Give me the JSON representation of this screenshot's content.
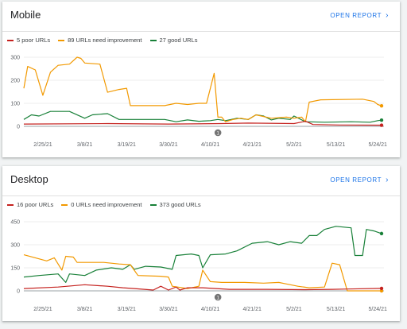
{
  "charts": [
    {
      "id": "mobile",
      "title": "Mobile",
      "open_report": "OPEN REPORT",
      "legend": [
        {
          "label": "5 poor URLs",
          "color": "#c5221f"
        },
        {
          "label": "89 URLs need improvement",
          "color": "#f29900"
        },
        {
          "label": "27 good URLs",
          "color": "#188038"
        }
      ],
      "annotation": "1"
    },
    {
      "id": "desktop",
      "title": "Desktop",
      "open_report": "OPEN REPORT",
      "legend": [
        {
          "label": "16 poor URLs",
          "color": "#c5221f"
        },
        {
          "label": "0 URLs need improvement",
          "color": "#f29900"
        },
        {
          "label": "373 good URLs",
          "color": "#188038"
        }
      ],
      "annotation": "1"
    }
  ],
  "chart_data": [
    {
      "type": "line",
      "title": "Mobile",
      "x_range": [
        "2021-02-20",
        "2021-05-25"
      ],
      "x_ticks": [
        "2/25/21",
        "3/8/21",
        "3/19/21",
        "3/30/21",
        "4/10/21",
        "4/21/21",
        "5/2/21",
        "5/13/21",
        "5/24/21"
      ],
      "ylim": [
        0,
        300
      ],
      "y_ticks": [
        "0",
        "100",
        "200",
        "300"
      ],
      "annotation_date": "2021-04-12",
      "series": [
        {
          "name": "5 poor URLs",
          "color": "#c5221f",
          "points": [
            [
              "2021-02-20",
              10
            ],
            [
              "2021-03-14",
              12
            ],
            [
              "2021-03-30",
              10
            ],
            [
              "2021-04-13",
              12
            ],
            [
              "2021-04-20",
              14
            ],
            [
              "2021-05-02",
              12
            ],
            [
              "2021-05-05",
              22
            ],
            [
              "2021-05-07",
              8
            ],
            [
              "2021-05-14",
              6
            ],
            [
              "2021-05-25",
              5
            ]
          ]
        },
        {
          "name": "89 URLs need improvement",
          "color": "#f29900",
          "points": [
            [
              "2021-02-20",
              165
            ],
            [
              "2021-02-21",
              260
            ],
            [
              "2021-02-23",
              245
            ],
            [
              "2021-02-25",
              135
            ],
            [
              "2021-02-27",
              235
            ],
            [
              "2021-03-01",
              265
            ],
            [
              "2021-03-04",
              270
            ],
            [
              "2021-03-06",
              300
            ],
            [
              "2021-03-07",
              295
            ],
            [
              "2021-03-08",
              275
            ],
            [
              "2021-03-12",
              270
            ],
            [
              "2021-03-14",
              148
            ],
            [
              "2021-03-17",
              160
            ],
            [
              "2021-03-19",
              165
            ],
            [
              "2021-03-20",
              90
            ],
            [
              "2021-03-29",
              90
            ],
            [
              "2021-04-01",
              100
            ],
            [
              "2021-04-04",
              95
            ],
            [
              "2021-04-07",
              100
            ],
            [
              "2021-04-09",
              100
            ],
            [
              "2021-04-11",
              230
            ],
            [
              "2021-04-12",
              40
            ],
            [
              "2021-04-13",
              40
            ],
            [
              "2021-04-14",
              20
            ],
            [
              "2021-04-16",
              30
            ],
            [
              "2021-04-18",
              35
            ],
            [
              "2021-04-20",
              30
            ],
            [
              "2021-04-22",
              50
            ],
            [
              "2021-04-26",
              35
            ],
            [
              "2021-04-30",
              40
            ],
            [
              "2021-05-02",
              35
            ],
            [
              "2021-05-04",
              40
            ],
            [
              "2021-05-05",
              20
            ],
            [
              "2021-05-06",
              105
            ],
            [
              "2021-05-09",
              115
            ],
            [
              "2021-05-20",
              118
            ],
            [
              "2021-05-23",
              108
            ],
            [
              "2021-05-24",
              95
            ],
            [
              "2021-05-25",
              89
            ]
          ]
        },
        {
          "name": "27 good URLs",
          "color": "#188038",
          "points": [
            [
              "2021-02-20",
              30
            ],
            [
              "2021-02-22",
              50
            ],
            [
              "2021-02-24",
              45
            ],
            [
              "2021-02-27",
              65
            ],
            [
              "2021-03-04",
              65
            ],
            [
              "2021-03-08",
              35
            ],
            [
              "2021-03-10",
              50
            ],
            [
              "2021-03-14",
              55
            ],
            [
              "2021-03-17",
              30
            ],
            [
              "2021-03-20",
              30
            ],
            [
              "2021-03-29",
              30
            ],
            [
              "2021-04-01",
              20
            ],
            [
              "2021-04-04",
              28
            ],
            [
              "2021-04-07",
              22
            ],
            [
              "2021-04-10",
              25
            ],
            [
              "2021-04-12",
              30
            ],
            [
              "2021-04-14",
              25
            ],
            [
              "2021-04-17",
              35
            ],
            [
              "2021-04-20",
              30
            ],
            [
              "2021-04-22",
              50
            ],
            [
              "2021-04-24",
              45
            ],
            [
              "2021-04-26",
              28
            ],
            [
              "2021-04-28",
              35
            ],
            [
              "2021-05-01",
              30
            ],
            [
              "2021-05-02",
              45
            ],
            [
              "2021-05-05",
              20
            ],
            [
              "2021-05-10",
              18
            ],
            [
              "2021-05-17",
              20
            ],
            [
              "2021-05-22",
              18
            ],
            [
              "2021-05-24",
              25
            ],
            [
              "2021-05-25",
              27
            ]
          ]
        }
      ]
    },
    {
      "type": "line",
      "title": "Desktop",
      "x_range": [
        "2021-02-20",
        "2021-05-25"
      ],
      "x_ticks": [
        "2/25/21",
        "3/8/21",
        "3/19/21",
        "3/30/21",
        "4/10/21",
        "4/21/21",
        "5/2/21",
        "5/13/21",
        "5/24/21"
      ],
      "ylim": [
        0,
        450
      ],
      "y_ticks": [
        "0",
        "150",
        "300",
        "450"
      ],
      "annotation_date": "2021-04-12",
      "series": [
        {
          "name": "16 poor URLs",
          "color": "#c5221f",
          "points": [
            [
              "2021-02-20",
              15
            ],
            [
              "2021-03-01",
              25
            ],
            [
              "2021-03-08",
              40
            ],
            [
              "2021-03-14",
              30
            ],
            [
              "2021-03-18",
              20
            ],
            [
              "2021-03-21",
              15
            ],
            [
              "2021-03-26",
              5
            ],
            [
              "2021-03-28",
              30
            ],
            [
              "2021-03-30",
              5
            ],
            [
              "2021-04-01",
              25
            ],
            [
              "2021-04-02",
              5
            ],
            [
              "2021-04-04",
              20
            ],
            [
              "2021-04-08",
              20
            ],
            [
              "2021-04-15",
              10
            ],
            [
              "2021-04-25",
              10
            ],
            [
              "2021-05-05",
              8
            ],
            [
              "2021-05-12",
              10
            ],
            [
              "2021-05-16",
              12
            ],
            [
              "2021-05-25",
              16
            ]
          ]
        },
        {
          "name": "0 URLs need improvement",
          "color": "#f29900",
          "points": [
            [
              "2021-02-20",
              235
            ],
            [
              "2021-02-23",
              215
            ],
            [
              "2021-02-26",
              195
            ],
            [
              "2021-02-28",
              215
            ],
            [
              "2021-03-02",
              135
            ],
            [
              "2021-03-03",
              225
            ],
            [
              "2021-03-05",
              220
            ],
            [
              "2021-03-06",
              185
            ],
            [
              "2021-03-13",
              185
            ],
            [
              "2021-03-17",
              175
            ],
            [
              "2021-03-20",
              170
            ],
            [
              "2021-03-22",
              100
            ],
            [
              "2021-03-28",
              95
            ],
            [
              "2021-03-30",
              90
            ],
            [
              "2021-03-31",
              30
            ],
            [
              "2021-04-04",
              15
            ],
            [
              "2021-04-07",
              30
            ],
            [
              "2021-04-08",
              135
            ],
            [
              "2021-04-10",
              60
            ],
            [
              "2021-04-13",
              55
            ],
            [
              "2021-04-19",
              55
            ],
            [
              "2021-04-24",
              50
            ],
            [
              "2021-04-28",
              55
            ],
            [
              "2021-04-30",
              45
            ],
            [
              "2021-05-03",
              30
            ],
            [
              "2021-05-06",
              20
            ],
            [
              "2021-05-10",
              25
            ],
            [
              "2021-05-12",
              180
            ],
            [
              "2021-05-14",
              170
            ],
            [
              "2021-05-16",
              0
            ],
            [
              "2021-05-25",
              0
            ]
          ]
        },
        {
          "name": "373 good URLs",
          "color": "#188038",
          "points": [
            [
              "2021-02-20",
              90
            ],
            [
              "2021-02-24",
              100
            ],
            [
              "2021-03-01",
              110
            ],
            [
              "2021-03-03",
              55
            ],
            [
              "2021-03-04",
              110
            ],
            [
              "2021-03-08",
              100
            ],
            [
              "2021-03-11",
              135
            ],
            [
              "2021-03-15",
              150
            ],
            [
              "2021-03-18",
              140
            ],
            [
              "2021-03-20",
              170
            ],
            [
              "2021-03-21",
              140
            ],
            [
              "2021-03-24",
              160
            ],
            [
              "2021-03-28",
              155
            ],
            [
              "2021-03-31",
              140
            ],
            [
              "2021-04-01",
              230
            ],
            [
              "2021-04-05",
              240
            ],
            [
              "2021-04-07",
              230
            ],
            [
              "2021-04-08",
              150
            ],
            [
              "2021-04-10",
              235
            ],
            [
              "2021-04-14",
              240
            ],
            [
              "2021-04-17",
              260
            ],
            [
              "2021-04-21",
              310
            ],
            [
              "2021-04-25",
              320
            ],
            [
              "2021-04-28",
              300
            ],
            [
              "2021-05-01",
              320
            ],
            [
              "2021-05-04",
              310
            ],
            [
              "2021-05-06",
              360
            ],
            [
              "2021-05-08",
              360
            ],
            [
              "2021-05-10",
              400
            ],
            [
              "2021-05-13",
              420
            ],
            [
              "2021-05-17",
              410
            ],
            [
              "2021-05-18",
              230
            ],
            [
              "2021-05-20",
              230
            ],
            [
              "2021-05-21",
              400
            ],
            [
              "2021-05-23",
              390
            ],
            [
              "2021-05-25",
              373
            ]
          ]
        }
      ]
    }
  ]
}
